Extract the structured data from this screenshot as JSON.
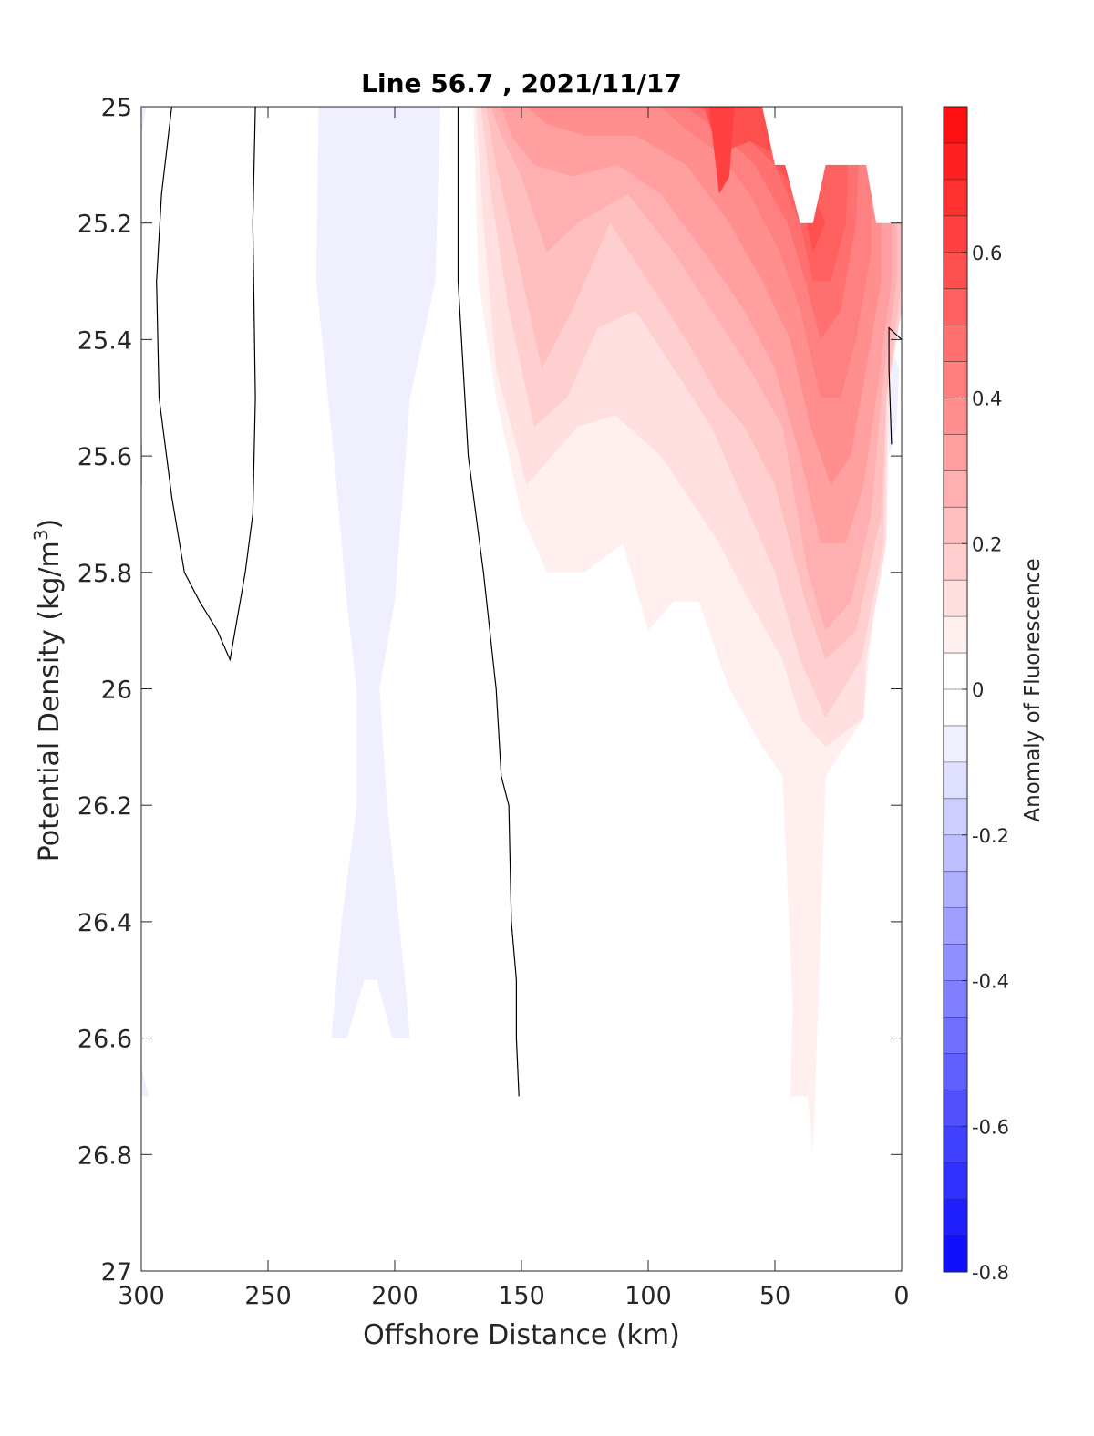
{
  "chart_data": {
    "type": "contour",
    "title": "Line 56.7 , 2021/11/17",
    "xlabel": "Offshore Distance (km)",
    "ylabel_main": "Potential Density (kg/m",
    "ylabel_sup": "3",
    "ylabel_close": ")",
    "colorbar_label": "Anomaly of Fluorescence",
    "xlim": [
      300,
      0
    ],
    "ylim": [
      25,
      27
    ],
    "x_reversed": true,
    "y_reversed": true,
    "x_ticks": [
      "300",
      "250",
      "200",
      "150",
      "100",
      "50",
      "0"
    ],
    "y_ticks": [
      "25",
      "25.2",
      "25.4",
      "25.6",
      "25.8",
      "26",
      "26.2",
      "26.4",
      "26.6",
      "26.8",
      "27"
    ],
    "colorbar": {
      "range": [
        -0.8,
        0.8
      ],
      "step": 0.05,
      "ticks": [
        "0.6",
        "0.4",
        "0.2",
        "0",
        "-0.2",
        "-0.4",
        "-0.6",
        "-0.8"
      ],
      "colormap": "blue-white-red",
      "negative_color": "#0000ff",
      "positive_color": "#ff0000",
      "zero_color": "#ffffff"
    },
    "filled_regions": [
      {
        "level": -0.05,
        "points": [
          [
            230,
            25.0
          ],
          [
            182,
            25.0
          ],
          [
            184,
            25.3
          ],
          [
            194,
            25.5
          ],
          [
            200,
            25.85
          ],
          [
            206,
            26.0
          ],
          [
            203,
            26.2
          ],
          [
            196,
            26.5
          ],
          [
            194,
            26.6
          ],
          [
            201,
            26.6
          ],
          [
            207,
            26.5
          ],
          [
            212,
            26.5
          ],
          [
            219,
            26.6
          ],
          [
            225,
            26.6
          ],
          [
            221,
            26.4
          ],
          [
            215,
            26.2
          ],
          [
            215,
            26.0
          ],
          [
            219,
            25.85
          ],
          [
            224,
            25.6
          ],
          [
            231,
            25.3
          ]
        ]
      },
      {
        "level": -0.05,
        "points": [
          [
            300,
            26.65
          ],
          [
            297,
            26.7
          ],
          [
            300,
            26.7
          ]
        ]
      },
      {
        "level": -0.05,
        "points": [
          [
            300,
            25.0
          ],
          [
            298,
            25.0
          ],
          [
            300,
            25.05
          ]
        ]
      },
      {
        "level": -0.05,
        "points": [
          [
            5,
            25.4
          ],
          [
            1,
            25.45
          ],
          [
            2,
            25.55
          ],
          [
            5,
            25.6
          ]
        ]
      },
      {
        "level": 0.05,
        "points": [
          [
            169,
            25.0
          ],
          [
            0,
            25.0
          ],
          [
            0,
            25.35
          ],
          [
            4,
            25.4
          ],
          [
            6,
            25.7
          ],
          [
            13,
            25.95
          ],
          [
            15,
            26.05
          ],
          [
            30,
            26.15
          ],
          [
            33,
            26.55
          ],
          [
            35,
            26.8
          ],
          [
            37,
            26.7
          ],
          [
            44,
            26.7
          ],
          [
            43,
            26.55
          ],
          [
            45,
            26.35
          ],
          [
            47,
            26.15
          ],
          [
            55,
            26.1
          ],
          [
            68,
            26.0
          ],
          [
            80,
            25.85
          ],
          [
            90,
            25.85
          ],
          [
            100,
            25.9
          ],
          [
            110,
            25.75
          ],
          [
            125,
            25.8
          ],
          [
            140,
            25.8
          ],
          [
            150,
            25.7
          ],
          [
            160,
            25.5
          ],
          [
            167,
            25.3
          ]
        ]
      },
      {
        "level": 0.1,
        "points": [
          [
            168,
            25.0
          ],
          [
            0,
            25.0
          ],
          [
            0,
            25.35
          ],
          [
            5,
            25.45
          ],
          [
            6,
            25.75
          ],
          [
            14,
            25.95
          ],
          [
            15,
            26.05
          ],
          [
            30,
            26.1
          ],
          [
            40,
            26.05
          ],
          [
            47,
            25.95
          ],
          [
            60,
            25.85
          ],
          [
            72,
            25.75
          ],
          [
            95,
            25.6
          ],
          [
            113,
            25.53
          ],
          [
            128,
            25.55
          ],
          [
            148,
            25.65
          ],
          [
            160,
            25.45
          ],
          [
            165,
            25.2
          ]
        ]
      },
      {
        "level": 0.15,
        "points": [
          [
            166,
            25.0
          ],
          [
            0,
            25.0
          ],
          [
            0,
            25.35
          ],
          [
            6,
            25.5
          ],
          [
            7,
            25.75
          ],
          [
            16,
            25.95
          ],
          [
            30,
            26.05
          ],
          [
            40,
            25.95
          ],
          [
            50,
            25.8
          ],
          [
            60,
            25.7
          ],
          [
            75,
            25.55
          ],
          [
            90,
            25.45
          ],
          [
            105,
            25.35
          ],
          [
            120,
            25.38
          ],
          [
            132,
            25.5
          ],
          [
            145,
            25.55
          ],
          [
            155,
            25.35
          ],
          [
            162,
            25.15
          ]
        ]
      },
      {
        "level": 0.2,
        "points": [
          [
            164,
            25.0
          ],
          [
            0,
            25.0
          ],
          [
            0,
            25.3
          ],
          [
            6,
            25.5
          ],
          [
            8,
            25.7
          ],
          [
            18,
            25.9
          ],
          [
            30,
            25.95
          ],
          [
            38,
            25.85
          ],
          [
            50,
            25.65
          ],
          [
            62,
            25.55
          ],
          [
            72,
            25.5
          ],
          [
            85,
            25.4
          ],
          [
            100,
            25.3
          ],
          [
            115,
            25.2
          ],
          [
            130,
            25.35
          ],
          [
            142,
            25.45
          ],
          [
            152,
            25.25
          ],
          [
            160,
            25.1
          ]
        ]
      },
      {
        "level": 0.25,
        "points": [
          [
            162,
            25.0
          ],
          [
            2,
            25.0
          ],
          [
            2,
            25.3
          ],
          [
            8,
            25.5
          ],
          [
            12,
            25.7
          ],
          [
            20,
            25.85
          ],
          [
            30,
            25.9
          ],
          [
            37,
            25.8
          ],
          [
            47,
            25.55
          ],
          [
            60,
            25.45
          ],
          [
            75,
            25.35
          ],
          [
            90,
            25.25
          ],
          [
            108,
            25.15
          ],
          [
            128,
            25.2
          ],
          [
            140,
            25.25
          ],
          [
            150,
            25.12
          ],
          [
            158,
            25.05
          ]
        ]
      },
      {
        "level": 0.3,
        "points": [
          [
            158,
            25.0
          ],
          [
            4,
            25.0
          ],
          [
            4,
            25.3
          ],
          [
            10,
            25.5
          ],
          [
            15,
            25.65
          ],
          [
            22,
            25.75
          ],
          [
            32,
            25.75
          ],
          [
            40,
            25.6
          ],
          [
            50,
            25.45
          ],
          [
            62,
            25.35
          ],
          [
            78,
            25.25
          ],
          [
            95,
            25.15
          ],
          [
            112,
            25.1
          ],
          [
            130,
            25.12
          ],
          [
            145,
            25.1
          ],
          [
            154,
            25.05
          ]
        ]
      },
      {
        "level": 0.35,
        "points": [
          [
            148,
            25.0
          ],
          [
            8,
            25.0
          ],
          [
            8,
            25.3
          ],
          [
            14,
            25.45
          ],
          [
            20,
            25.6
          ],
          [
            28,
            25.65
          ],
          [
            36,
            25.55
          ],
          [
            44,
            25.4
          ],
          [
            55,
            25.3
          ],
          [
            68,
            25.2
          ],
          [
            85,
            25.1
          ],
          [
            105,
            25.05
          ],
          [
            125,
            25.05
          ],
          [
            140,
            25.03
          ]
        ]
      },
      {
        "level": 0.4,
        "points": [
          [
            95,
            25.0
          ],
          [
            12,
            25.0
          ],
          [
            12,
            25.25
          ],
          [
            18,
            25.4
          ],
          [
            24,
            25.5
          ],
          [
            32,
            25.5
          ],
          [
            40,
            25.35
          ],
          [
            48,
            25.25
          ],
          [
            60,
            25.15
          ],
          [
            72,
            25.08
          ],
          [
            85,
            25.04
          ]
        ]
      },
      {
        "level": 0.45,
        "points": [
          [
            85,
            25.0
          ],
          [
            16,
            25.0
          ],
          [
            18,
            25.2
          ],
          [
            24,
            25.35
          ],
          [
            32,
            25.4
          ],
          [
            38,
            25.3
          ],
          [
            45,
            25.2
          ],
          [
            58,
            25.1
          ],
          [
            70,
            25.05
          ]
        ]
      },
      {
        "level": 0.5,
        "points": [
          [
            80,
            25.0
          ],
          [
            20,
            25.0
          ],
          [
            22,
            25.2
          ],
          [
            28,
            25.3
          ],
          [
            35,
            25.3
          ],
          [
            40,
            25.2
          ],
          [
            50,
            25.1
          ],
          [
            62,
            25.05
          ]
        ]
      },
      {
        "level": 0.55,
        "points": [
          [
            78,
            25.0
          ],
          [
            55,
            25.0
          ],
          [
            50,
            25.1
          ],
          [
            40,
            25.15
          ],
          [
            35,
            25.25
          ],
          [
            30,
            25.2
          ],
          [
            40,
            25.1
          ],
          [
            60,
            25.06
          ],
          [
            72,
            25.08
          ]
        ]
      },
      {
        "level": 0.6,
        "points": [
          [
            76,
            25.0
          ],
          [
            66,
            25.0
          ],
          [
            68,
            25.12
          ],
          [
            72,
            25.15
          ]
        ]
      }
    ],
    "masked_region": [
      [
        0,
        25.0
      ],
      [
        0,
        25.2
      ],
      [
        10,
        25.2
      ],
      [
        14,
        25.1
      ],
      [
        30,
        25.1
      ],
      [
        35,
        25.2
      ],
      [
        40,
        25.2
      ],
      [
        46,
        25.1
      ],
      [
        50,
        25.1
      ],
      [
        55,
        25.0
      ]
    ],
    "zero_contours": [
      [
        [
          288,
          25.0
        ],
        [
          292,
          25.15
        ],
        [
          294,
          25.3
        ],
        [
          293,
          25.5
        ],
        [
          288,
          25.67
        ],
        [
          283,
          25.8
        ],
        [
          277,
          25.85
        ],
        [
          270,
          25.9
        ],
        [
          265,
          25.95
        ],
        [
          263,
          25.9
        ],
        [
          259,
          25.8
        ],
        [
          256,
          25.7
        ],
        [
          255,
          25.5
        ],
        [
          256,
          25.2
        ],
        [
          255,
          25.0
        ]
      ],
      [
        [
          175,
          25.0
        ],
        [
          175,
          25.3
        ],
        [
          171,
          25.6
        ],
        [
          165,
          25.8
        ],
        [
          160,
          26.0
        ],
        [
          158,
          26.15
        ],
        [
          155,
          26.2
        ],
        [
          154,
          26.4
        ],
        [
          152,
          26.5
        ],
        [
          152,
          26.6
        ],
        [
          151,
          26.7
        ]
      ],
      [
        [
          300,
          25.58
        ],
        [
          300,
          25.65
        ]
      ],
      [
        [
          0,
          25.4
        ],
        [
          5,
          25.38
        ],
        [
          5,
          25.45
        ],
        [
          4,
          25.58
        ]
      ]
    ]
  }
}
